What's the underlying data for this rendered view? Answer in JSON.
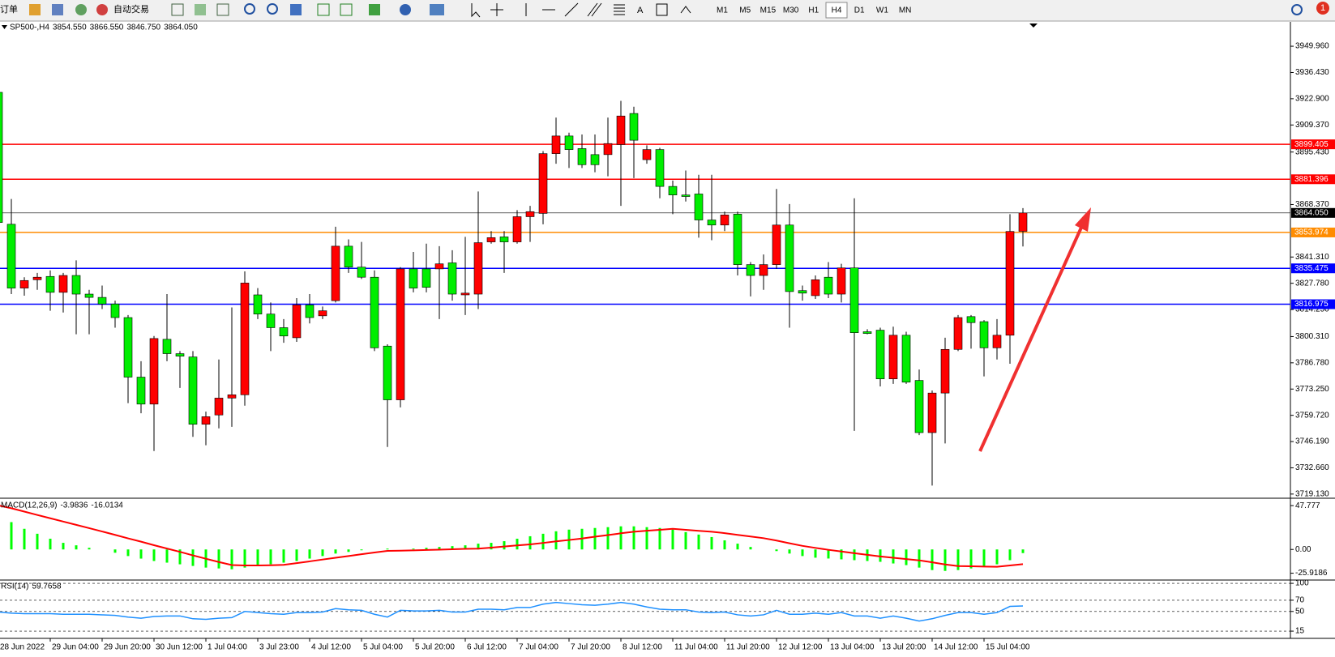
{
  "toolbar": {
    "menu": "订单",
    "autotrade": "自动交易",
    "text_tool": "A",
    "timeframes": [
      "M1",
      "M5",
      "M15",
      "M30",
      "H1",
      "H4",
      "D1",
      "W1",
      "MN"
    ],
    "active_timeframe": 5,
    "alerts": "1"
  },
  "chart_data": [
    {
      "type": "candlestick",
      "title": "SP500-,H4",
      "info_values": [
        {
          "value": 3854.55,
          "label": "3854.550"
        },
        {
          "value": 3866.55,
          "label": "3866.550"
        },
        {
          "value": 3846.75,
          "label": "3846.750"
        },
        {
          "value": 3864.05,
          "label": "3864.050"
        }
      ],
      "categories": [
        "28 Jun 2022",
        null,
        null,
        null,
        "29 Jun 04:00",
        null,
        null,
        null,
        "29 Jun 20:00",
        null,
        null,
        null,
        "30 Jun 12:00",
        null,
        null,
        null,
        "1 Jul 04:00",
        null,
        null,
        null,
        "3 Jul 23:00",
        null,
        null,
        null,
        "4 Jul 12:00",
        null,
        null,
        null,
        "5 Jul 04:00",
        null,
        null,
        null,
        "5 Jul 20:00",
        null,
        null,
        null,
        "6 Jul 12:00",
        null,
        null,
        null,
        "7 Jul 04:00",
        null,
        null,
        null,
        "7 Jul 20:00",
        null,
        null,
        null,
        "8 Jul 12:00",
        null,
        null,
        null,
        "11 Jul 04:00",
        null,
        null,
        null,
        "11 Jul 20:00",
        null,
        null,
        null,
        "12 Jul 12:00",
        null,
        null,
        null,
        "13 Jul 04:00",
        null,
        null,
        null,
        "13 Jul 20:00",
        null,
        null,
        null,
        "14 Jul 12:00",
        null,
        null,
        null,
        "15 Jul 04:00",
        null,
        null,
        null
      ],
      "open": [
        3926.2,
        3858.2,
        3825.3,
        3829.6,
        3831.3,
        3823.1,
        3831.8,
        3822.2,
        3820.5,
        3817.1,
        3810.1,
        3779.4,
        3765.5,
        3798.9,
        3791.5,
        3789.8,
        3755.1,
        3759.9,
        3768.6,
        3770.3,
        3821.8,
        3811.9,
        3804.9,
        3799.7,
        3816.6,
        3811.0,
        3818.8,
        3846.9,
        3836.1,
        3830.9,
        3795.4,
        3767.7,
        3835.2,
        3835.2,
        3835.2,
        3838.3,
        3821.8,
        3822.2,
        3849.1,
        3851.7,
        3849.1,
        3862.1,
        3863.8,
        3894.6,
        3903.7,
        3897.2,
        3894.1,
        3894.1,
        3899.3,
        3915.3,
        3891.5,
        3896.7,
        3877.7,
        3873.3,
        3873.8,
        3860.4,
        3857.8,
        3863.4,
        3837.4,
        3831.8,
        3837.4,
        3857.8,
        3824.0,
        3821.4,
        3830.9,
        3822.2,
        3835.7,
        3802.8,
        3803.6,
        3778.5,
        3801.0,
        3777.7,
        3750.8,
        3771.2,
        3793.7,
        3810.6,
        3808.0,
        3794.5,
        3801.0,
        3854.55
      ],
      "high": [
        3928.3,
        3871.2,
        3830.9,
        3833.1,
        3834.4,
        3833.1,
        3839.6,
        3824.4,
        3826.6,
        3818.8,
        3811.4,
        3787.6,
        3800.6,
        3822.2,
        3792.8,
        3792.8,
        3761.6,
        3788.5,
        3815.3,
        3833.9,
        3825.3,
        3817.9,
        3809.3,
        3820.1,
        3822.2,
        3815.8,
        3856.9,
        3850.4,
        3849.1,
        3834.4,
        3796.3,
        3836.1,
        3843.9,
        3848.2,
        3846.9,
        3844.8,
        3851.7,
        3875.1,
        3854.7,
        3854.7,
        3865.5,
        3867.7,
        3895.9,
        3913.2,
        3905.4,
        3904.5,
        3904.5,
        3913.2,
        3921.8,
        3918.8,
        3898.9,
        3897.6,
        3880.7,
        3885.9,
        3883.7,
        3883.7,
        3864.7,
        3864.7,
        3838.7,
        3842.6,
        3876.4,
        3868.6,
        3826.6,
        3831.8,
        3838.7,
        3837.8,
        3871.6,
        3804.1,
        3804.9,
        3805.4,
        3802.8,
        3783.3,
        3772.5,
        3799.7,
        3811.4,
        3811.4,
        3808.8,
        3809.3,
        3863.4,
        3866.55
      ],
      "low": [
        3857.8,
        3822.2,
        3821.4,
        3824.4,
        3813.6,
        3812.7,
        3801.5,
        3801.5,
        3814.5,
        3804.9,
        3766.0,
        3760.8,
        3741.3,
        3787.6,
        3773.8,
        3748.6,
        3744.3,
        3753.0,
        3753.8,
        3764.7,
        3809.3,
        3792.8,
        3797.1,
        3797.6,
        3807.1,
        3809.3,
        3817.9,
        3833.1,
        3830.0,
        3792.8,
        3743.4,
        3763.8,
        3823.1,
        3823.1,
        3809.3,
        3818.8,
        3811.4,
        3814.5,
        3848.2,
        3833.1,
        3848.2,
        3849.1,
        3858.2,
        3889.4,
        3887.2,
        3887.2,
        3885.0,
        3882.9,
        3867.7,
        3882.0,
        3889.4,
        3871.6,
        3863.4,
        3869.9,
        3851.3,
        3850.0,
        3854.7,
        3831.8,
        3821.0,
        3824.4,
        3835.2,
        3804.9,
        3818.8,
        3819.7,
        3820.1,
        3817.9,
        3751.7,
        3801.5,
        3774.6,
        3775.9,
        3775.9,
        3749.5,
        3723.5,
        3745.2,
        3792.8,
        3794.1,
        3779.8,
        3788.5,
        3786.3,
        3846.75
      ],
      "close": [
        3859.1,
        3825.3,
        3829.2,
        3830.9,
        3823.1,
        3831.8,
        3822.2,
        3820.5,
        3817.1,
        3810.1,
        3779.4,
        3765.5,
        3799.3,
        3791.5,
        3790.2,
        3755.1,
        3759.0,
        3768.6,
        3770.3,
        3827.9,
        3811.9,
        3804.9,
        3800.6,
        3816.6,
        3810.1,
        3813.6,
        3846.9,
        3836.1,
        3830.9,
        3794.5,
        3767.7,
        3835.2,
        3825.3,
        3825.7,
        3837.8,
        3822.2,
        3822.7,
        3848.7,
        3851.3,
        3849.1,
        3862.1,
        3864.7,
        3894.6,
        3903.7,
        3896.7,
        3888.9,
        3888.9,
        3899.8,
        3914.0,
        3901.5,
        3896.7,
        3877.7,
        3873.3,
        3872.5,
        3860.4,
        3857.8,
        3863.0,
        3837.4,
        3831.8,
        3837.4,
        3857.8,
        3823.5,
        3822.7,
        3829.6,
        3822.2,
        3835.7,
        3802.3,
        3801.9,
        3778.5,
        3801.0,
        3776.8,
        3750.8,
        3771.2,
        3793.7,
        3810.1,
        3807.5,
        3794.5,
        3801.0,
        3854.5,
        3864.05
      ],
      "up_color": "#ff0000",
      "down_color": "#00ee00",
      "ylim": [
        3717.4,
        3962.1
      ],
      "yticks": [
        {
          "value": 3949.96,
          "label": "3949.960"
        },
        {
          "value": 3936.43,
          "label": "3936.430"
        },
        {
          "value": 3922.9,
          "label": "3922.900"
        },
        {
          "value": 3909.37,
          "label": "3909.370"
        },
        {
          "value": 3895.43,
          "label": "3895.430"
        },
        {
          "value": 3868.37,
          "label": "3868.370"
        },
        {
          "value": 3841.31,
          "label": "3841.310"
        },
        {
          "value": 3827.78,
          "label": "3827.780"
        },
        {
          "value": 3814.25,
          "label": "3814.250"
        },
        {
          "value": 3800.31,
          "label": "3800.310"
        },
        {
          "value": 3786.78,
          "label": "3786.780"
        },
        {
          "value": 3773.25,
          "label": "3773.250"
        },
        {
          "value": 3759.72,
          "label": "3759.720"
        },
        {
          "value": 3746.19,
          "label": "3746.190"
        },
        {
          "value": 3732.66,
          "label": "3732.660"
        },
        {
          "value": 3719.13,
          "label": "3719.130"
        }
      ],
      "levels": [
        {
          "value": 3899.405,
          "label": "3899.405",
          "color": "#ff0000"
        },
        {
          "value": 3881.396,
          "label": "3881.396",
          "color": "#ff0000"
        },
        {
          "value": 3864.05,
          "label": "3864.050",
          "color": "#000000"
        },
        {
          "value": 3853.974,
          "label": "3853.974",
          "color": "#ff8c00"
        },
        {
          "value": 3835.475,
          "label": "3835.475",
          "color": "#0000ff"
        },
        {
          "value": 3816.975,
          "label": "3816.975",
          "color": "#0000ff"
        }
      ],
      "grid": false
    },
    {
      "type": "macd",
      "title": "MACD(12,26,9)",
      "info_values": [
        -3.9836,
        -16.0134
      ],
      "series": [
        {
          "color": "#00ff00",
          "values": [
            33,
            29.8,
            22.5,
            17.1,
            11.7,
            7.2,
            4.5,
            1.8,
            0,
            -3.6,
            -7.2,
            -10,
            -12.6,
            -14.4,
            -16.2,
            -18,
            -19.8,
            -20.7,
            -21.6,
            -19.8,
            -18,
            -16.2,
            -14.4,
            -12.6,
            -10,
            -7.2,
            -4.5,
            -2.7,
            -0.9,
            0,
            0.9,
            0,
            0.9,
            1.8,
            2.7,
            3.6,
            4.5,
            6.3,
            7.2,
            9,
            11.7,
            14.4,
            17.1,
            19.8,
            21.6,
            22.5,
            23.4,
            24.3,
            25.2,
            25.2,
            24.3,
            23.4,
            21.6,
            18.9,
            16.2,
            13.5,
            9.9,
            6.3,
            2.7,
            0,
            -1.8,
            -4.5,
            -7.2,
            -9,
            -9.9,
            -10.8,
            -11.7,
            -12.6,
            -13.5,
            -15.3,
            -17.1,
            -19.8,
            -22.5,
            -23.4,
            -22.5,
            -20.7,
            -18,
            -16.2,
            -11.7,
            -3.9836
          ]
        },
        {
          "color": "#ff0000",
          "values": [
            48,
            44.9,
            41.3,
            37.6,
            34.0,
            30.4,
            26.8,
            23.2,
            19.6,
            15.9,
            12.1,
            8.5,
            4.6,
            1.0,
            -2.6,
            -6.5,
            -10.1,
            -13.7,
            -17.0,
            -17.5,
            -17.5,
            -17.3,
            -16.8,
            -14.9,
            -13.0,
            -11.0,
            -9.1,
            -7.2,
            -5.2,
            -3.3,
            -1.6,
            -1.4,
            -1.0,
            -0.6,
            -0.2,
            0.2,
            0.6,
            0.9,
            2.0,
            3.2,
            4.4,
            5.5,
            7.1,
            8.8,
            10.3,
            11.9,
            13.9,
            15.7,
            17.6,
            19.3,
            20.4,
            21.4,
            22.5,
            21.4,
            20.3,
            19.3,
            17.8,
            15.9,
            14.1,
            12.3,
            9.7,
            6.7,
            3.9,
            1.7,
            -0.4,
            -2.2,
            -4.1,
            -5.9,
            -7.6,
            -9.1,
            -10.5,
            -11.9,
            -14.0,
            -16.4,
            -18.1,
            -18.4,
            -18.7,
            -18.9,
            -17.5,
            -16.0134
          ]
        }
      ],
      "ylim": [
        -31.6,
        53.2
      ],
      "yticks": [
        47.777,
        {
          "value": 0,
          "label": "0.00"
        },
        -25.9186
      ],
      "grid": false
    },
    {
      "type": "line",
      "title": "RSI(14)",
      "info_values": [
        59.7658
      ],
      "series": [
        {
          "color": "#1e90ff",
          "values": [
            49,
            47,
            46,
            46,
            46,
            45,
            45,
            45,
            44,
            43,
            40,
            38,
            41,
            42,
            42,
            37,
            36,
            38,
            39,
            50,
            48,
            46,
            45,
            48,
            48,
            49,
            55,
            53,
            52,
            45,
            40,
            52,
            51,
            51,
            52,
            49,
            49,
            54,
            54,
            53,
            57,
            57,
            63,
            66,
            64,
            62,
            61,
            63,
            66,
            63,
            58,
            54,
            53,
            53,
            49,
            48,
            49,
            44,
            42,
            44,
            52,
            45,
            45,
            47,
            45,
            48,
            42,
            42,
            38,
            42,
            38,
            33,
            37,
            43,
            48,
            48,
            45,
            48,
            59,
            59.7658
          ]
        }
      ],
      "ylim": [
        5,
        103
      ],
      "yticks": [
        100,
        70,
        50,
        15
      ],
      "grid": "dashed"
    }
  ]
}
